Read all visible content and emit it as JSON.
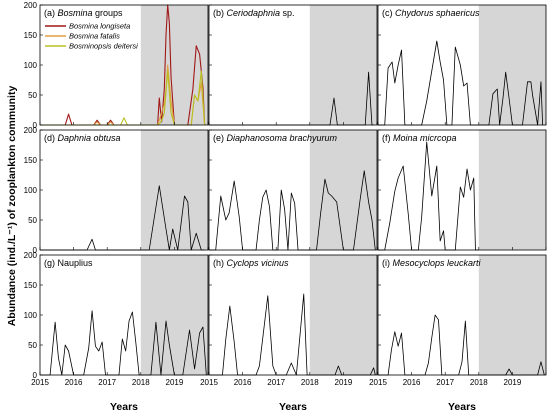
{
  "chart_data": {
    "type": "line",
    "ylabel": "Abundance (ind./L⁻¹) of zooplankton community",
    "xlabel": "Years",
    "xlim": [
      2015,
      2020
    ],
    "ylim": [
      0,
      200
    ],
    "xticks": [
      2015,
      2016,
      2017,
      2018,
      2019
    ],
    "yticks": [
      0,
      50,
      100,
      150,
      200
    ],
    "shaded_from": 2018,
    "panels": [
      {
        "label_prefix": "(a) ",
        "label_italic": "Bosmina",
        "label_rest": " groups",
        "series": [
          {
            "name": "Bosmina longiseta",
            "color": "#a01818",
            "x": [
              2015.0,
              2015.75,
              2015.85,
              2015.95,
              2016.6,
              2016.7,
              2016.8,
              2017.0,
              2017.1,
              2017.2,
              2017.4,
              2017.5,
              2017.6,
              2018.0,
              2018.5,
              2018.55,
              2018.62,
              2018.7,
              2018.75,
              2018.8,
              2018.85,
              2018.9,
              2019.0,
              2019.4,
              2019.55,
              2019.65,
              2019.75,
              2019.85,
              2019.9
            ],
            "y": [
              0,
              0,
              18,
              0,
              0,
              8,
              0,
              0,
              8,
              0,
              0,
              0,
              0,
              0,
              0,
              45,
              5,
              60,
              150,
              200,
              170,
              80,
              0,
              0,
              60,
              132,
              118,
              62,
              0
            ]
          },
          {
            "name": "Bosmina fatalis",
            "color": "#e0a040",
            "x": [
              2015.0,
              2016.6,
              2016.7,
              2016.8,
              2017.0,
              2017.1,
              2017.2,
              2018.5,
              2018.62,
              2018.7,
              2018.75,
              2018.8,
              2018.9,
              2019.0,
              2019.5,
              2019.6,
              2019.7,
              2019.8,
              2019.9
            ],
            "y": [
              0,
              0,
              5,
              0,
              0,
              5,
              0,
              0,
              20,
              35,
              60,
              100,
              40,
              0,
              0,
              50,
              40,
              70,
              0
            ]
          },
          {
            "name": "Bosminopsis deitersi",
            "color": "#b8c020",
            "x": [
              2015.0,
              2017.4,
              2017.5,
              2017.6,
              2018.5,
              2018.6,
              2018.7,
              2018.8,
              2018.9,
              2019.0,
              2019.5,
              2019.6,
              2019.7,
              2019.8,
              2019.9
            ],
            "y": [
              0,
              0,
              12,
              0,
              0,
              5,
              20,
              90,
              20,
              0,
              0,
              50,
              40,
              90,
              0
            ]
          }
        ]
      },
      {
        "label_prefix": "(b) ",
        "label_italic": "Ceriodaphnia",
        "label_rest": " sp.",
        "series": [
          {
            "color": "#000000",
            "x": [
              2015.0,
              2018.6,
              2018.72,
              2018.82,
              2019.65,
              2019.75,
              2019.85,
              2019.9
            ],
            "y": [
              0,
              0,
              45,
              0,
              0,
              88,
              0,
              0
            ]
          }
        ]
      },
      {
        "label_prefix": "(c) ",
        "label_italic": "Chydorus sphaericus",
        "label_rest": "",
        "series": [
          {
            "color": "#000000",
            "x": [
              2015.0,
              2015.2,
              2015.3,
              2015.42,
              2015.5,
              2015.6,
              2015.7,
              2015.8,
              2016.0,
              2016.3,
              2016.45,
              2016.6,
              2016.75,
              2016.85,
              2016.95,
              2017.05,
              2017.2,
              2017.3,
              2017.45,
              2017.55,
              2017.65,
              2017.75,
              2017.82,
              2018.0,
              2018.3,
              2018.42,
              2018.55,
              2018.62,
              2018.72,
              2018.8,
              2018.9,
              2019.0,
              2019.2,
              2019.3,
              2019.45,
              2019.55,
              2019.6,
              2019.75,
              2019.85,
              2019.9
            ],
            "y": [
              0,
              0,
              95,
              105,
              70,
              100,
              125,
              0,
              0,
              0,
              40,
              90,
              140,
              105,
              75,
              0,
              0,
              130,
              100,
              65,
              70,
              0,
              0,
              0,
              0,
              52,
              60,
              0,
              45,
              88,
              45,
              0,
              0,
              0,
              72,
              72,
              50,
              0,
              72,
              0
            ]
          }
        ]
      },
      {
        "label_prefix": "(d) ",
        "label_italic": "Daphnia obtusa",
        "label_rest": "",
        "series": [
          {
            "color": "#000000",
            "x": [
              2015.0,
              2016.4,
              2016.55,
              2016.65,
              2017.0,
              2018.25,
              2018.55,
              2018.75,
              2018.85,
              2018.95,
              2019.1,
              2019.3,
              2019.4,
              2019.5,
              2019.65,
              2019.8,
              2019.9
            ],
            "y": [
              0,
              0,
              18,
              0,
              0,
              0,
              107,
              35,
              0,
              35,
              0,
              90,
              80,
              0,
              28,
              0,
              0
            ]
          }
        ]
      },
      {
        "label_prefix": "(e) ",
        "label_italic": "Diaphanosoma brachyurum",
        "label_rest": "",
        "series": [
          {
            "color": "#000000",
            "x": [
              2015.0,
              2015.2,
              2015.35,
              2015.5,
              2015.6,
              2015.75,
              2015.9,
              2016.0,
              2016.4,
              2016.5,
              2016.6,
              2016.7,
              2016.8,
              2016.9,
              2017.05,
              2017.15,
              2017.25,
              2017.35,
              2017.45,
              2017.55,
              2017.65,
              2017.9,
              2018.0,
              2018.2,
              2018.32,
              2018.45,
              2018.55,
              2018.65,
              2018.8,
              2019.0,
              2019.3,
              2019.5,
              2019.62,
              2019.75,
              2019.85,
              2019.95
            ],
            "y": [
              0,
              0,
              90,
              50,
              62,
              115,
              55,
              0,
              0,
              50,
              88,
              100,
              72,
              0,
              0,
              100,
              68,
              0,
              95,
              78,
              0,
              0,
              0,
              0,
              60,
              118,
              95,
              90,
              80,
              0,
              0,
              85,
              132,
              80,
              50,
              0
            ]
          }
        ]
      },
      {
        "label_prefix": "(f) ",
        "label_italic": "Moina micrcopa",
        "label_rest": "",
        "series": [
          {
            "color": "#000000",
            "x": [
              2015.0,
              2015.2,
              2015.35,
              2015.5,
              2015.6,
              2015.75,
              2015.9,
              2016.0,
              2016.2,
              2016.3,
              2016.45,
              2016.6,
              2016.75,
              2016.85,
              2016.95,
              2017.0,
              2017.3,
              2017.45,
              2017.55,
              2017.65,
              2017.75,
              2017.85,
              2017.9,
              2018.0
            ],
            "y": [
              0,
              0,
              45,
              98,
              120,
              140,
              60,
              0,
              0,
              55,
              180,
              90,
              140,
              15,
              32,
              0,
              0,
              105,
              88,
              135,
              100,
              120,
              0,
              0
            ]
          }
        ]
      },
      {
        "label_prefix": "(g) ",
        "label_italic": "",
        "label_rest": "Nauplius",
        "series": [
          {
            "color": "#000000",
            "x": [
              2015.0,
              2015.3,
              2015.45,
              2015.55,
              2015.65,
              2015.75,
              2015.85,
              2016.0,
              2016.3,
              2016.45,
              2016.55,
              2016.65,
              2016.75,
              2016.85,
              2016.95,
              2017.15,
              2017.35,
              2017.45,
              2017.55,
              2017.65,
              2017.75,
              2017.85,
              2017.95,
              2018.0,
              2018.3,
              2018.45,
              2018.6,
              2018.75,
              2018.85,
              2019.0,
              2019.25,
              2019.45,
              2019.6,
              2019.75,
              2019.85,
              2019.95
            ],
            "y": [
              0,
              0,
              88,
              28,
              0,
              50,
              40,
              0,
              0,
              45,
              107,
              48,
              40,
              55,
              0,
              0,
              0,
              60,
              40,
              90,
              105,
              55,
              0,
              0,
              0,
              88,
              0,
              90,
              50,
              0,
              0,
              75,
              10,
              70,
              80,
              0
            ]
          }
        ]
      },
      {
        "label_prefix": "(h) ",
        "label_italic": "Cyclops vicinus",
        "label_rest": "",
        "series": [
          {
            "color": "#000000",
            "x": [
              2015.0,
              2015.2,
              2015.4,
              2015.5,
              2015.62,
              2015.75,
              2015.85,
              2016.0,
              2016.4,
              2016.5,
              2016.65,
              2016.75,
              2016.9,
              2017.0,
              2017.3,
              2017.45,
              2017.6,
              2017.82,
              2017.92,
              2018.0,
              2018.75,
              2018.85,
              2018.95,
              2019.8,
              2019.9,
              2019.95
            ],
            "y": [
              0,
              0,
              0,
              60,
              115,
              55,
              0,
              0,
              0,
              15,
              85,
              132,
              15,
              0,
              0,
              20,
              0,
              135,
              0,
              0,
              0,
              15,
              0,
              0,
              12,
              0
            ]
          }
        ]
      },
      {
        "label_prefix": "(i) ",
        "label_italic": "Mesocyclops leuckarti",
        "label_rest": "",
        "series": [
          {
            "color": "#000000",
            "x": [
              2015.0,
              2015.3,
              2015.4,
              2015.5,
              2015.6,
              2015.7,
              2015.8,
              2016.0,
              2016.4,
              2016.5,
              2016.6,
              2016.7,
              2016.8,
              2016.9,
              2017.0,
              2017.4,
              2017.5,
              2017.6,
              2017.7,
              2017.85,
              2017.9,
              2018.0,
              2018.8,
              2018.9,
              2019.0,
              2019.75,
              2019.85,
              2019.95
            ],
            "y": [
              0,
              0,
              42,
              72,
              48,
              70,
              0,
              0,
              0,
              20,
              62,
              100,
              92,
              0,
              0,
              0,
              22,
              90,
              0,
              0,
              0,
              0,
              0,
              10,
              0,
              0,
              22,
              0
            ]
          }
        ]
      }
    ]
  }
}
